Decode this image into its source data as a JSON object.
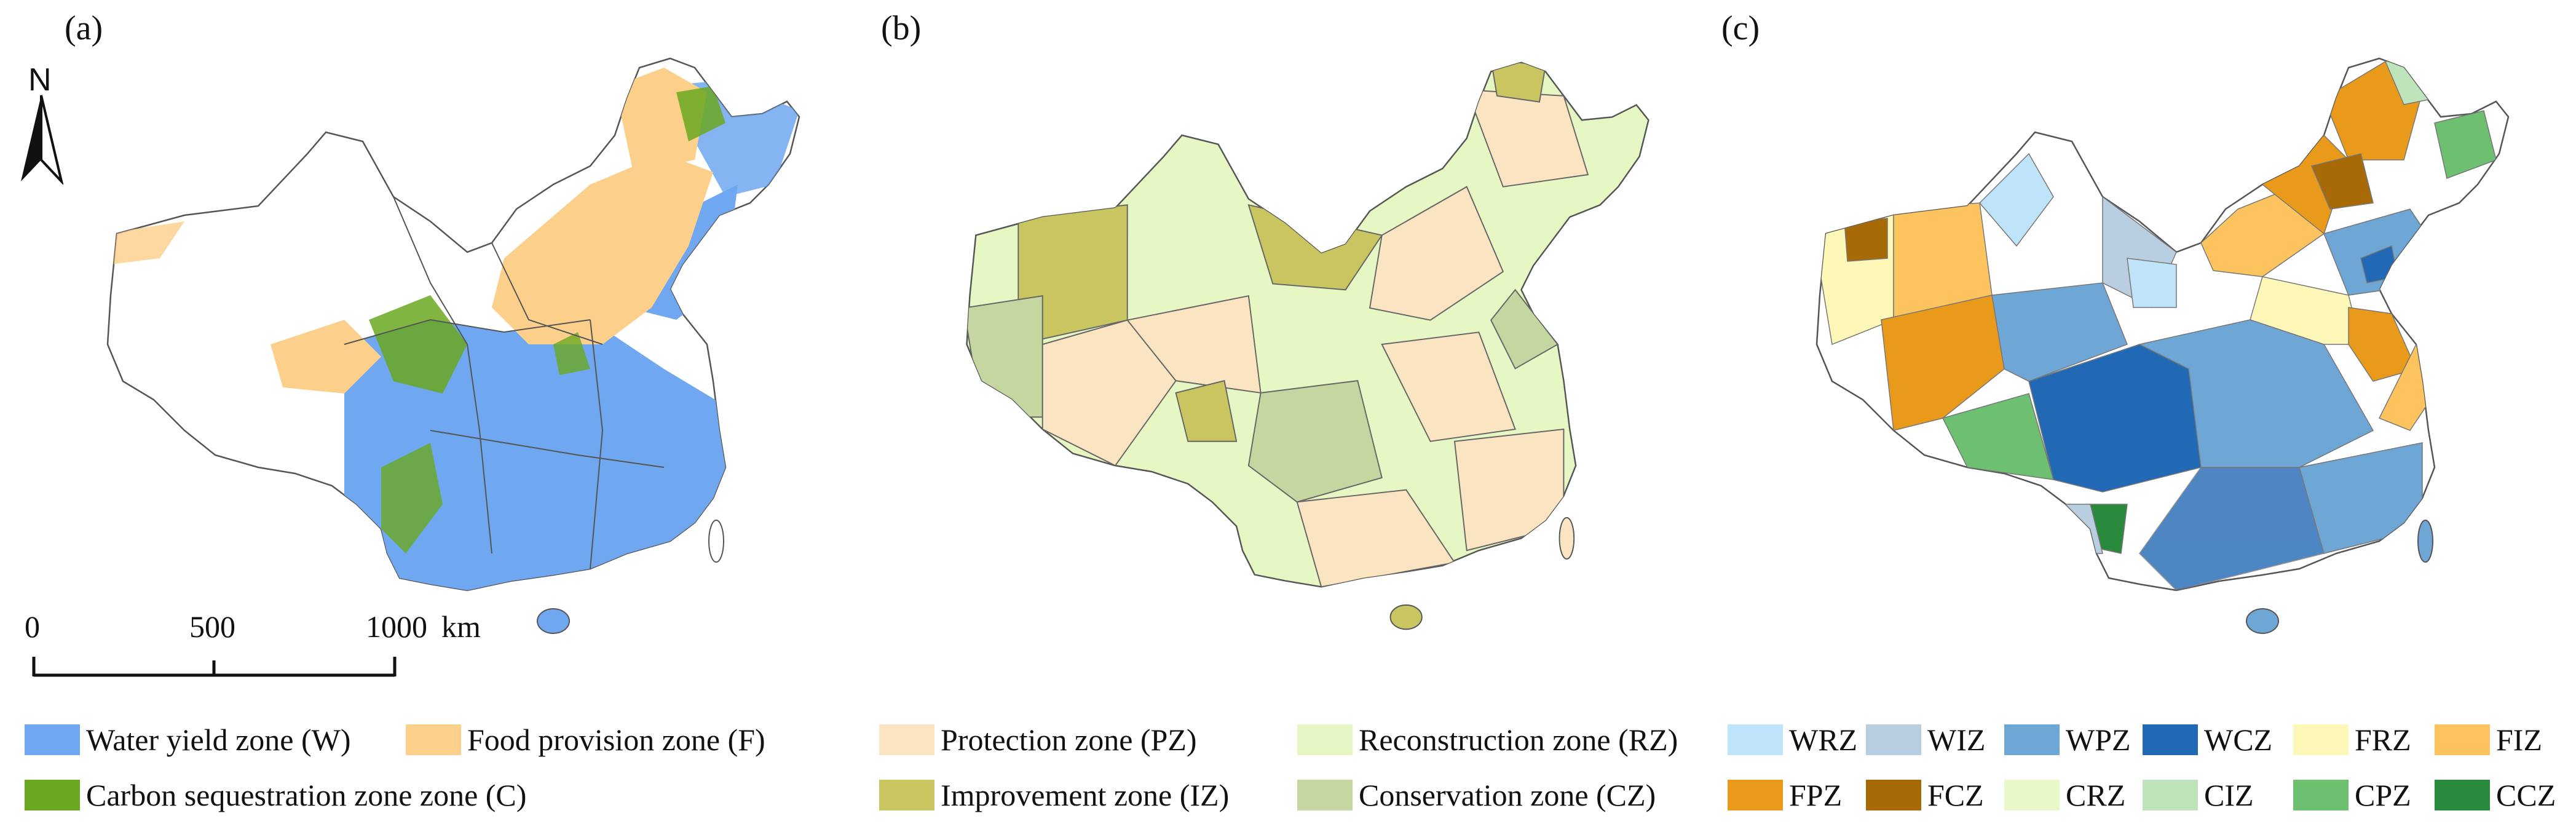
{
  "panels": [
    {
      "label": "(a)"
    },
    {
      "label": "(b)"
    },
    {
      "label": "(c)"
    }
  ],
  "north_arrow": {
    "letter": "N",
    "icon": "north-arrow-icon"
  },
  "scale_bar": {
    "ticks": [
      "0",
      "500",
      "1000"
    ],
    "unit": "km"
  },
  "legend_a": [
    {
      "label": "Water yield zone (W)",
      "color": "#6fa8f0"
    },
    {
      "label": "Food provision zone (F)",
      "color": "#fcd08a"
    },
    {
      "label": "Carbon sequestration zone zone (C)",
      "color": "#6aa820"
    }
  ],
  "legend_b": [
    {
      "label": "Protection zone (PZ)",
      "color": "#fbe4c2"
    },
    {
      "label": "Reconstruction zone (RZ)",
      "color": "#e6f7c4"
    },
    {
      "label": "Improvement zone (IZ)",
      "color": "#c9c560"
    },
    {
      "label": "Conservation zone (CZ)",
      "color": "#c5d6a0"
    }
  ],
  "legend_c": [
    {
      "label": "WRZ",
      "color": "#bfe3f8"
    },
    {
      "label": "WIZ",
      "color": "#b9cfe1"
    },
    {
      "label": "WPZ",
      "color": "#6ea6d6"
    },
    {
      "label": "WCZ",
      "color": "#2169b5"
    },
    {
      "label": "FRZ",
      "color": "#fdf7b8"
    },
    {
      "label": "FIZ",
      "color": "#fdc35e"
    },
    {
      "label": "FPZ",
      "color": "#e99a1b"
    },
    {
      "label": "FCZ",
      "color": "#a86a06"
    },
    {
      "label": "CRZ",
      "color": "#e8f8c8"
    },
    {
      "label": "CIZ",
      "color": "#bfe3bb"
    },
    {
      "label": "CPZ",
      "color": "#6cc070"
    },
    {
      "label": "CCZ",
      "color": "#2a8a3c"
    }
  ]
}
